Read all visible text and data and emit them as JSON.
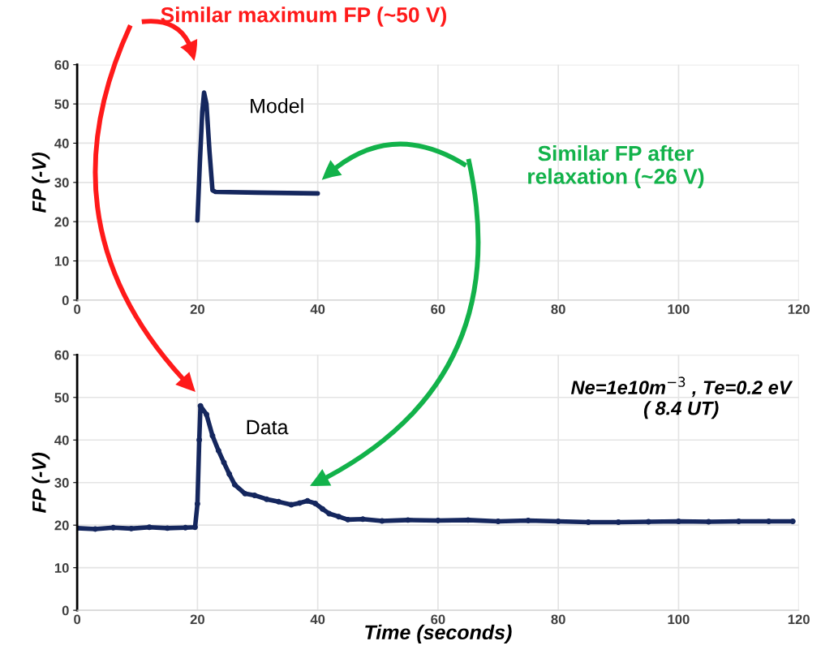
{
  "chart_data": [
    {
      "type": "line",
      "ylabel": "FP (-V)",
      "xlim": [
        0,
        120
      ],
      "xticks": [
        0,
        20,
        40,
        60,
        80,
        100,
        120
      ],
      "ylim": [
        0,
        60
      ],
      "yticks": [
        0,
        10,
        20,
        30,
        40,
        50,
        60
      ],
      "grid": true,
      "marker": "none",
      "line_style": "solid",
      "annotations": [
        "Similar maximum FP (~50 V)",
        "Similar FP after\nrelaxation (~26 V)"
      ],
      "series": [
        {
          "name": "Model",
          "color": "#15275e",
          "x": [
            20,
            20.4,
            20.8,
            21.1,
            21.5,
            22,
            22.5,
            23,
            30,
            40
          ],
          "values": [
            20.3,
            35,
            48,
            52.9,
            50,
            38,
            28,
            27.6,
            27.4,
            27.2
          ]
        }
      ]
    },
    {
      "type": "line",
      "xlabel": "Time (seconds)",
      "ylabel": "FP (-V)",
      "xlim": [
        0,
        120
      ],
      "xticks": [
        0,
        20,
        40,
        60,
        80,
        100,
        120
      ],
      "ylim": [
        0,
        60
      ],
      "yticks": [
        0,
        10,
        20,
        30,
        40,
        50,
        60
      ],
      "grid": true,
      "marker": "circle",
      "line_style": "solid",
      "annotations": [
        "Ne=1e10m$^{−3}$ , Te=0.2 eV\n( 8.4 UT)"
      ],
      "series": [
        {
          "name": "Data",
          "color": "#15275e",
          "x": [
            0,
            3,
            6,
            9,
            12,
            15,
            18,
            19.6,
            20,
            20.3,
            20.5,
            21.5,
            22.5,
            23.5,
            24.4,
            25.3,
            26.2,
            27.9,
            29.5,
            31.5,
            33.5,
            35.6,
            37,
            38.3,
            39.6,
            40.8,
            41.9,
            43.5,
            45,
            47.5,
            50.7,
            55,
            60,
            65,
            70,
            75,
            80,
            85,
            90,
            95,
            100,
            105,
            110,
            115,
            119
          ],
          "values": [
            19.3,
            19.1,
            19.4,
            19.2,
            19.5,
            19.3,
            19.4,
            19.5,
            25,
            40,
            48,
            46,
            41,
            37.5,
            34.7,
            32,
            29.5,
            27.4,
            27,
            26.1,
            25.5,
            24.8,
            25.2,
            25.7,
            25.1,
            23.8,
            22.7,
            22,
            21.3,
            21.4,
            21,
            21.2,
            21.1,
            21.2,
            20.9,
            21.1,
            20.9,
            20.7,
            20.7,
            20.8,
            20.9,
            20.8,
            20.9,
            20.9,
            20.9
          ]
        }
      ]
    }
  ]
}
